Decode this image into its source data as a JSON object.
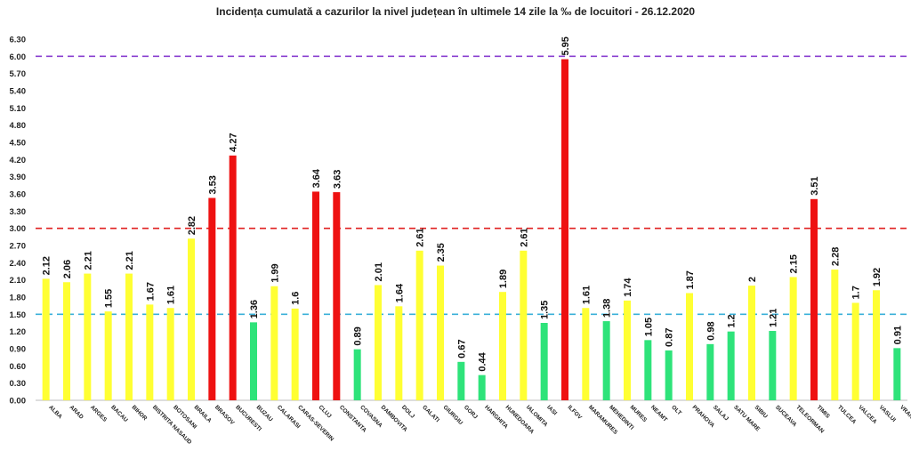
{
  "chart_data": {
    "type": "bar",
    "title": "Incidența cumulată a cazurilor la nivel județean în ultimele 14 zile la ‰ de locuitori - 26.12.2020",
    "xlabel": "",
    "ylabel": "",
    "ylim": [
      0,
      6.3
    ],
    "y_ticks": [
      "0.00",
      "0.30",
      "0.60",
      "0.90",
      "1.20",
      "1.50",
      "1.80",
      "2.10",
      "2.40",
      "2.70",
      "3.00",
      "3.30",
      "3.60",
      "3.90",
      "4.20",
      "4.50",
      "4.80",
      "5.10",
      "5.40",
      "5.70",
      "6.00",
      "6.30"
    ],
    "grid": false,
    "legend": "none",
    "categories": [
      "ALBA",
      "ARAD",
      "ARGES",
      "BACAU",
      "BIHOR",
      "BISTRITA NASAUD",
      "BOTOSANI",
      "BRAILA",
      "BRASOV",
      "BUCURESTI",
      "BUZAU",
      "CALARASI",
      "CARAS-SEVERIN",
      "CLUJ",
      "CONSTANTA",
      "COVASNA",
      "DAMBOVITA",
      "DOLJ",
      "GALATI",
      "GIURGIU",
      "GORJ",
      "HARGHITA",
      "HUNEDOARA",
      "IALOMITA",
      "IASI",
      "ILFOV",
      "MARAMURES",
      "MEHEDINTI",
      "MURES",
      "NEAMT",
      "OLT",
      "PRAHOVA",
      "SALAJ",
      "SATU MARE",
      "SIBIU",
      "SUCEAVA",
      "TELEORMAN",
      "TIMIS",
      "TULCEA",
      "VALCEA",
      "VASLUI",
      "VRANCEA"
    ],
    "values": [
      2.12,
      2.06,
      2.21,
      1.55,
      2.21,
      1.67,
      1.61,
      2.82,
      3.53,
      4.27,
      1.36,
      1.99,
      1.6,
      3.64,
      3.63,
      0.89,
      2.01,
      1.64,
      2.61,
      2.35,
      0.67,
      0.44,
      1.89,
      2.61,
      1.35,
      5.95,
      1.61,
      1.38,
      1.74,
      1.05,
      0.87,
      1.87,
      0.98,
      1.2,
      2,
      1.21,
      2.15,
      3.51,
      2.28,
      1.7,
      1.92,
      0.91
    ],
    "value_labels": [
      "2.12",
      "2.06",
      "2.21",
      "1.55",
      "2.21",
      "1.67",
      "1.61",
      "2.82",
      "3.53",
      "4.27",
      "1.36",
      "1.99",
      "1.6",
      "3.64",
      "3.63",
      "0.89",
      "2.01",
      "1.64",
      "2.61",
      "2.35",
      "0.67",
      "0.44",
      "1.89",
      "2.61",
      "1.35",
      "5.95",
      "1.61",
      "1.38",
      "1.74",
      "1.05",
      "0.87",
      "1.87",
      "0.98",
      "1.2",
      "2",
      "1.21",
      "2.15",
      "3.51",
      "2.28",
      "1.7",
      "1.92",
      "0.91"
    ],
    "thresholds": [
      {
        "value": 1.5,
        "color": "#3ab0d8",
        "style": "dashed"
      },
      {
        "value": 3.0,
        "color": "#e02020",
        "style": "dashed"
      },
      {
        "value": 6.0,
        "color": "#8a3fd0",
        "style": "dashed"
      }
    ],
    "colors": {
      "green": "#2ee37a",
      "yellow": "#ffff33",
      "red": "#ee1111"
    },
    "color_rule": "green below 1.5, yellow 1.5-3.0, red above 3.0"
  }
}
